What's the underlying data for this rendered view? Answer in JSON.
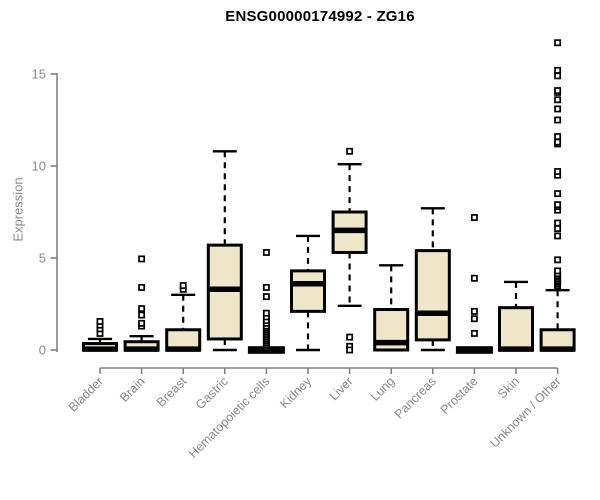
{
  "header": {
    "title": "ENSG00000174992 - ZG16"
  },
  "chart_data": {
    "type": "boxplot",
    "title": "ENSG00000174992 - ZG16",
    "xlabel": "",
    "ylabel": "Expression",
    "ylim": [
      0,
      16.8
    ],
    "yticks": [
      0,
      5,
      10,
      15
    ],
    "grid": false,
    "legend": "none",
    "categories": [
      "Bladder",
      "Brain",
      "Breast",
      "Gastric",
      "Hematopoietic cells",
      "Kidney",
      "Liver",
      "Lung",
      "Pancreas",
      "Prostate",
      "Skin",
      "Unknown / Other"
    ],
    "series": [
      {
        "name": "Bladder",
        "low": 0,
        "q1": 0,
        "median": 0.05,
        "q3": 0.35,
        "high": 0.6,
        "outliers": [
          0.9,
          1.15,
          1.35,
          1.55
        ]
      },
      {
        "name": "Brain",
        "low": 0,
        "q1": 0,
        "median": 0.05,
        "q3": 0.45,
        "high": 0.75,
        "outliers": [
          1.3,
          1.45,
          1.9,
          2.25,
          3.4,
          4.95
        ]
      },
      {
        "name": "Breast",
        "low": 0,
        "q1": 0,
        "median": 0.05,
        "q3": 1.1,
        "high": 3.0,
        "outliers": [
          3.3,
          3.5
        ]
      },
      {
        "name": "Gastric",
        "low": 0,
        "q1": 0.6,
        "median": 3.3,
        "q3": 5.7,
        "high": 10.8,
        "outliers": []
      },
      {
        "name": "Hematopoietic cells",
        "low": 0,
        "q1": 0,
        "median": 0,
        "q3": 0,
        "high": 0,
        "outliers": [
          0.1,
          0.2,
          0.3,
          0.4,
          0.5,
          0.6,
          0.7,
          0.8,
          0.9,
          1.0,
          1.1,
          1.2,
          1.3,
          1.45,
          1.6,
          1.8,
          2.0,
          2.9,
          3.4,
          5.3
        ]
      },
      {
        "name": "Kidney",
        "low": 0,
        "q1": 2.1,
        "median": 3.6,
        "q3": 4.3,
        "high": 6.2,
        "outliers": []
      },
      {
        "name": "Liver",
        "low": 2.4,
        "q1": 5.3,
        "median": 6.5,
        "q3": 7.5,
        "high": 10.1,
        "outliers": [
          10.8,
          0.7,
          0.2,
          0
        ]
      },
      {
        "name": "Lung",
        "low": 0,
        "q1": 0,
        "median": 0.4,
        "q3": 2.2,
        "high": 4.6,
        "outliers": []
      },
      {
        "name": "Pancreas",
        "low": 0,
        "q1": 0.55,
        "median": 2.0,
        "q3": 5.4,
        "high": 7.7,
        "outliers": []
      },
      {
        "name": "Prostate",
        "low": 0,
        "q1": 0,
        "median": 0,
        "q3": 0,
        "high": 0,
        "outliers": [
          0.9,
          1.7,
          2.1,
          3.9,
          7.2
        ]
      },
      {
        "name": "Skin",
        "low": 0,
        "q1": 0,
        "median": 0.05,
        "q3": 2.3,
        "high": 3.7,
        "outliers": []
      },
      {
        "name": "Unknown / Other",
        "low": 0,
        "q1": 0,
        "median": 0.05,
        "q3": 1.1,
        "high": 3.25,
        "outliers": [
          3.5,
          3.6,
          3.7,
          3.75,
          3.85,
          3.95,
          4.05,
          4.15,
          4.3,
          4.9,
          6.2,
          6.6,
          6.9,
          7.6,
          7.8,
          7.9,
          8.5,
          9.5,
          9.7,
          11.2,
          11.3,
          11.6,
          12.5,
          13.1,
          13.6,
          14.0,
          14.1,
          14.9,
          15.2,
          16.7
        ]
      }
    ],
    "colors": {
      "box_fill": "#ede6c8",
      "box_stroke": "#000000",
      "median": "#000000",
      "whisker": "#000000",
      "outlier_stroke": "#000000",
      "outlier_fill": "#ffffff",
      "axis": "#848484",
      "axis_text": "#8a8a8a",
      "title_text": "#000000"
    }
  }
}
